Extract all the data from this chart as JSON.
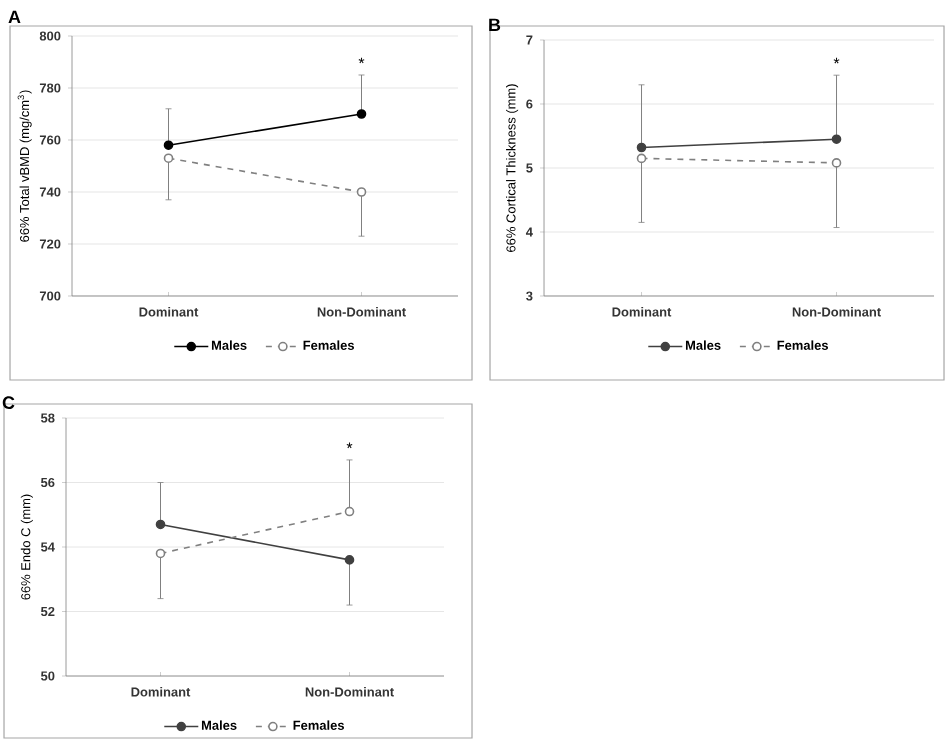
{
  "chart_data": [
    {
      "type": "line",
      "title": "A",
      "ylabel": "66% Total vBMD (mg/cm$^{3}$)",
      "categories": [
        "Dominant",
        "Non-Dominant"
      ],
      "ylim": [
        700,
        800
      ],
      "yticks": [
        700,
        720,
        740,
        760,
        780,
        800
      ],
      "grid": "y",
      "legend": "bottom",
      "marker": "circle",
      "series": [
        {
          "name": "Males",
          "color": "#000000",
          "line_style": "solid",
          "values": [
            758,
            770
          ],
          "errors": [
            [
              758,
              772
            ],
            [
              770,
              785
            ]
          ]
        },
        {
          "name": "Females",
          "color": "#808080",
          "line_style": "dashed",
          "values": [
            753,
            740
          ],
          "errors": [
            [
              737,
              753
            ],
            [
              723,
              740
            ]
          ]
        }
      ],
      "annotations": [
        "*"
      ]
    },
    {
      "type": "line",
      "title": "B",
      "ylabel": "66% Cortical Thickness (mm)",
      "categories": [
        "Dominant",
        "Non-Dominant"
      ],
      "ylim": [
        3,
        7
      ],
      "yticks": [
        3,
        4,
        5,
        6,
        7
      ],
      "grid": "y",
      "legend": "bottom",
      "marker": "circle",
      "series": [
        {
          "name": "Males",
          "color": "#404040",
          "line_style": "solid",
          "values": [
            5.32,
            5.45
          ],
          "errors": [
            [
              5.32,
              6.3
            ],
            [
              5.45,
              6.45
            ]
          ]
        },
        {
          "name": "Females",
          "color": "#808080",
          "line_style": "dashed",
          "values": [
            5.15,
            5.08
          ],
          "errors": [
            [
              4.15,
              5.15
            ],
            [
              4.07,
              5.08
            ]
          ]
        }
      ],
      "annotations": [
        "*"
      ]
    },
    {
      "type": "line",
      "title": "C",
      "ylabel": "66% Endo C (mm)",
      "categories": [
        "Dominant",
        "Non-Dominant"
      ],
      "ylim": [
        50,
        58
      ],
      "yticks": [
        50,
        52,
        54,
        56,
        58
      ],
      "grid": "y",
      "legend": "bottom",
      "marker": "circle",
      "series": [
        {
          "name": "Males",
          "color": "#404040",
          "line_style": "solid",
          "values": [
            54.7,
            53.6
          ],
          "errors": [
            [
              54.7,
              56.0
            ],
            [
              52.2,
              53.6
            ]
          ]
        },
        {
          "name": "Females",
          "color": "#808080",
          "line_style": "dashed",
          "values": [
            53.8,
            55.1
          ],
          "errors": [
            [
              52.4,
              53.8
            ],
            [
              55.1,
              56.7
            ]
          ]
        }
      ],
      "annotations": [
        "*"
      ]
    }
  ]
}
